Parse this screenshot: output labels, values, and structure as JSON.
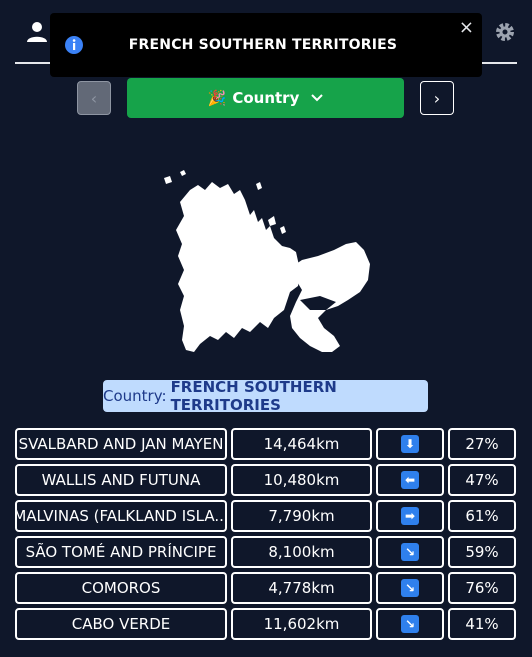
{
  "toast": {
    "title": "FRENCH SOUTHERN TERRITORIES",
    "close": "×"
  },
  "nav": {
    "prev": "‹",
    "next": "›"
  },
  "mode_button": {
    "emoji": "🎉",
    "label": "Country",
    "chevron": "⌄"
  },
  "answer": {
    "prefix": "Country:",
    "name": "FRENCH SOUTHERN TERRITORIES"
  },
  "guesses": [
    {
      "name": "SVALBARD AND JAN MAYEN",
      "distance": "14,464km",
      "direction": "⬇",
      "proximity": "27%"
    },
    {
      "name": "WALLIS AND FUTUNA",
      "distance": "10,480km",
      "direction": "⬅",
      "proximity": "47%"
    },
    {
      "name": "MALVINAS (FALKLAND ISLA...",
      "distance": "7,790km",
      "direction": "➡",
      "proximity": "61%"
    },
    {
      "name": "SÃO TOMÉ AND PRÍNCIPE",
      "distance": "8,100km",
      "direction": "↘",
      "proximity": "59%"
    },
    {
      "name": "COMOROS",
      "distance": "4,778km",
      "direction": "↘",
      "proximity": "76%"
    },
    {
      "name": "CABO VERDE",
      "distance": "11,602km",
      "direction": "↘",
      "proximity": "41%"
    }
  ],
  "colors": {
    "background": "#0f172a",
    "accent_green": "#16a34a",
    "arrow_blue": "#2f80ed",
    "label_bg": "#bfdbfe"
  },
  "icons": [
    "user-icon",
    "info-icon",
    "close-icon",
    "gear-icon",
    "chevron-left-icon",
    "chevron-right-icon",
    "chevron-down-icon"
  ]
}
